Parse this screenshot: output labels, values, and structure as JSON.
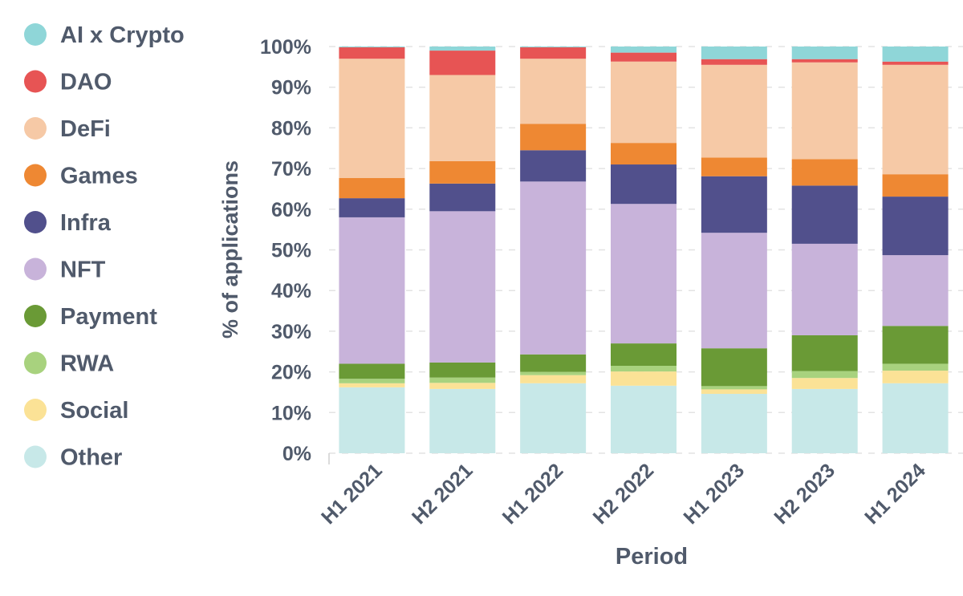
{
  "chart_data": {
    "type": "bar",
    "stacked": true,
    "normalized": true,
    "title": "",
    "xlabel": "Period",
    "ylabel": "% of applications",
    "ylim": [
      0,
      100
    ],
    "yticks": [
      "0%",
      "10%",
      "20%",
      "30%",
      "40%",
      "50%",
      "60%",
      "70%",
      "80%",
      "90%",
      "100%"
    ],
    "grid": true,
    "legend_position": "left",
    "categories": [
      "H1 2021",
      "H2 2021",
      "H1 2022",
      "H2 2022",
      "H1 2023",
      "H2 2023",
      "H1 2024"
    ],
    "series": [
      {
        "name": "Other",
        "color": "#c7e8e8",
        "values": [
          16.2,
          15.8,
          17.2,
          16.6,
          14.6,
          15.8,
          17.2
        ]
      },
      {
        "name": "Social",
        "color": "#fbe296",
        "values": [
          1.0,
          1.5,
          2.0,
          3.5,
          1.1,
          2.7,
          3.1
        ]
      },
      {
        "name": "RWA",
        "color": "#a8d27e",
        "values": [
          1.1,
          1.3,
          0.8,
          1.4,
          0.8,
          1.7,
          1.7
        ]
      },
      {
        "name": "Payment",
        "color": "#6a9a36",
        "values": [
          3.7,
          3.7,
          4.3,
          5.5,
          9.3,
          8.8,
          9.3
        ]
      },
      {
        "name": "NFT",
        "color": "#c8b3da",
        "values": [
          36.0,
          37.2,
          42.5,
          34.3,
          28.4,
          22.5,
          17.4
        ]
      },
      {
        "name": "Infra",
        "color": "#51508c",
        "values": [
          4.7,
          6.8,
          7.7,
          9.7,
          13.9,
          14.3,
          14.4
        ]
      },
      {
        "name": "Games",
        "color": "#ee8833",
        "values": [
          5.0,
          5.5,
          6.5,
          5.3,
          4.6,
          6.5,
          5.5
        ]
      },
      {
        "name": "DeFi",
        "color": "#f6c9a6",
        "values": [
          29.3,
          21.2,
          16.0,
          20.0,
          22.8,
          23.8,
          26.9
        ]
      },
      {
        "name": "DAO",
        "color": "#e75454",
        "values": [
          2.8,
          6.0,
          2.8,
          2.2,
          1.4,
          0.8,
          0.8
        ]
      },
      {
        "name": "AI x Crypto",
        "color": "#8fd6d8",
        "values": [
          0.2,
          1.0,
          0.2,
          1.5,
          3.1,
          3.1,
          3.7
        ]
      }
    ]
  }
}
